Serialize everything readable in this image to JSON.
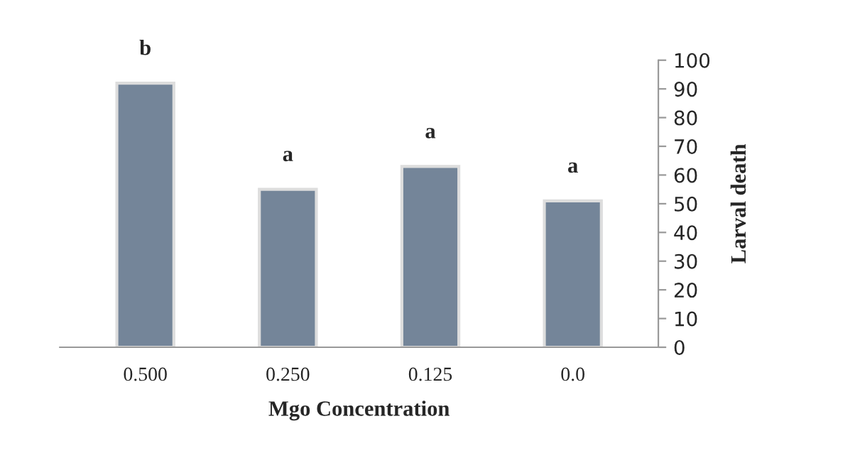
{
  "chart_data": {
    "type": "bar",
    "xlabel": "Mgo Concentration",
    "ylabel": "Larval death",
    "categories": [
      "0.500",
      "0.250",
      "0.125",
      "0.0"
    ],
    "values": [
      92,
      55,
      63,
      51
    ],
    "color": "#748599",
    "ylim": [
      0,
      100
    ],
    "yticks": [
      0,
      10,
      20,
      30,
      40,
      50,
      60,
      70,
      80,
      90,
      100
    ],
    "grid": false,
    "annotations": [
      "b",
      "a",
      "a",
      "a"
    ]
  }
}
